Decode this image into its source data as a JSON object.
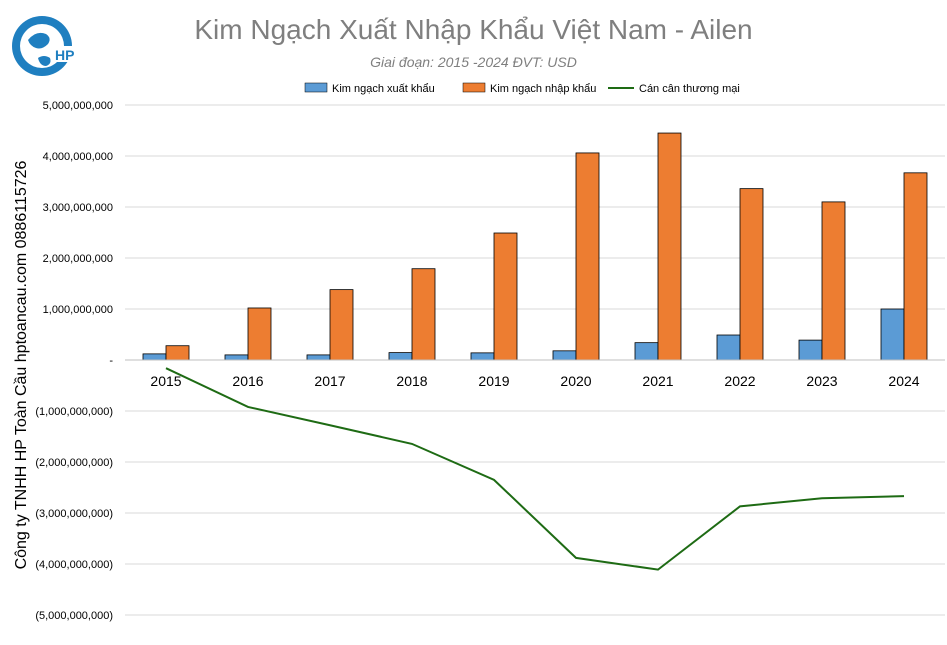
{
  "page": {
    "title": "Kim Ngạch Xuất Nhập Khẩu Việt Nam - Ailen",
    "subtitle": "Giai đoạn: 2015 -2024  ĐVT: USD",
    "side_label": "Công ty TNHH HP Toàn Cầu hptoancau.com 0886115726",
    "logo_text": "HP",
    "colors": {
      "export": "#5b9bd5",
      "import": "#ed7d31",
      "balance": "#1e6b14",
      "text_gray": "#7f7f7f"
    }
  },
  "chart_data": {
    "type": "bar",
    "categories": [
      "2015",
      "2016",
      "2017",
      "2018",
      "2019",
      "2020",
      "2021",
      "2022",
      "2023",
      "2024"
    ],
    "series": [
      {
        "name": "Kim ngạch xuất khẩu",
        "type": "bar",
        "values": [
          120000000,
          100000000,
          100000000,
          145000000,
          140000000,
          180000000,
          340000000,
          490000000,
          390000000,
          1000000000
        ]
      },
      {
        "name": "Kim ngạch nhập khẩu",
        "type": "bar",
        "values": [
          280000000,
          1020000000,
          1380000000,
          1790000000,
          2490000000,
          4060000000,
          4450000000,
          3360000000,
          3100000000,
          3670000000
        ]
      },
      {
        "name": "Cán cân thương mại",
        "type": "line",
        "values": [
          -160000000,
          -920000000,
          -1280000000,
          -1645000000,
          -2350000000,
          -3880000000,
          -4110000000,
          -2870000000,
          -2710000000,
          -2670000000
        ]
      }
    ],
    "ylim": [
      -5000000000,
      5000000000
    ],
    "yticks": [
      "5,000,000,000",
      "4,000,000,000",
      "3,000,000,000",
      "2,000,000,000",
      "1,000,000,000",
      "-",
      "(1,000,000,000)",
      "(2,000,000,000)",
      "(3,000,000,000)",
      "(4,000,000,000)",
      "(5,000,000,000)"
    ],
    "grid": true,
    "legend_position": "top"
  }
}
